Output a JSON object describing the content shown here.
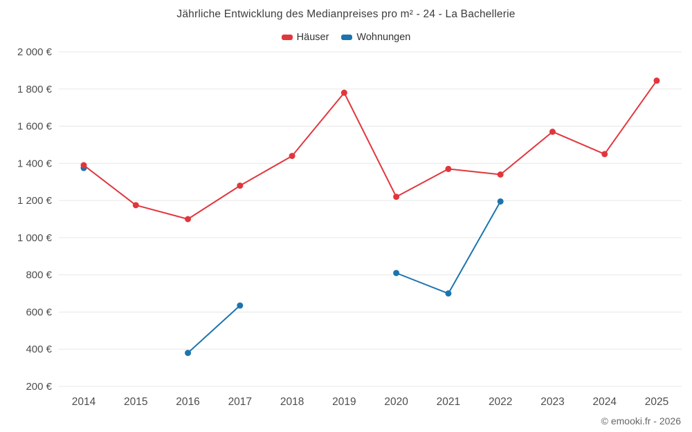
{
  "chart_data": {
    "type": "line",
    "title": "Jährliche Entwicklung des Medianpreises pro m² - 24 - La Bachellerie",
    "categories": [
      "2014",
      "2015",
      "2016",
      "2017",
      "2018",
      "2019",
      "2020",
      "2021",
      "2022",
      "2023",
      "2024",
      "2025"
    ],
    "series": [
      {
        "name": "Häuser",
        "color": "#e1363c",
        "values": [
          1390,
          1175,
          1100,
          1280,
          1440,
          1780,
          1220,
          1370,
          1340,
          1570,
          1450,
          1845
        ]
      },
      {
        "name": "Wohnungen",
        "color": "#1b74ae",
        "values": [
          1375,
          null,
          380,
          635,
          null,
          null,
          810,
          700,
          1195,
          null,
          null,
          null
        ]
      }
    ],
    "ylim": [
      200,
      2000
    ],
    "ytick_step": 200,
    "ytick_suffix": " €",
    "grid": true,
    "legend_position": "top"
  },
  "footer": {
    "credit": "© emooki.fr - 2026"
  },
  "colors": {
    "grid": "#e7e7e7",
    "axis_text": "#4d4d4d"
  }
}
